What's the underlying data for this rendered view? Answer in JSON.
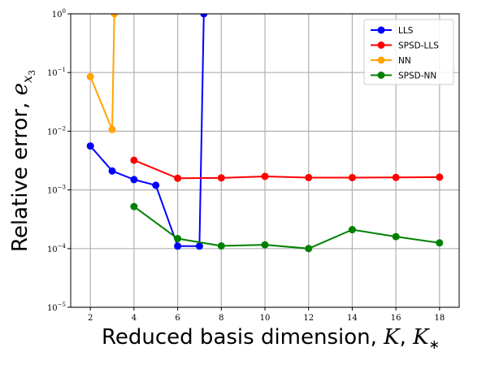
{
  "chart_data": {
    "type": "line",
    "yscale": "log",
    "xlim": [
      1.1,
      18.9
    ],
    "ylim": [
      1e-05,
      1
    ],
    "xticks": [
      2,
      4,
      6,
      8,
      10,
      12,
      14,
      16,
      18
    ],
    "xtick_labels": [
      "2",
      "4",
      "6",
      "8",
      "10",
      "12",
      "14",
      "16",
      "18"
    ],
    "yticks": [
      1e-05,
      0.0001,
      0.001,
      0.01,
      0.1,
      1
    ],
    "ytick_base": "10",
    "ytick_exponents": [
      "−5",
      "−4",
      "−3",
      "−2",
      "−1",
      "0"
    ],
    "grid": true,
    "legend_position": "top-right",
    "xlabel": {
      "prefix": "Reduced basis dimension, ",
      "sym1": "K",
      "sep": ", ",
      "sym2": "K",
      "sym2_sub": "∗"
    },
    "ylabel": {
      "prefix": "Relative error, ",
      "sym": "e",
      "sub": "x",
      "subsub": "3"
    },
    "series": [
      {
        "name": "LLS",
        "color": "#0000ff",
        "points": [
          [
            2,
            0.0056
          ],
          [
            3,
            0.0021
          ],
          [
            4,
            0.0015
          ],
          [
            5,
            0.0012
          ],
          [
            6,
            0.00011
          ],
          [
            7,
            0.00011
          ],
          [
            7.2,
            1.0
          ]
        ]
      },
      {
        "name": "SPSD-LLS",
        "color": "#ff0000",
        "points": [
          [
            4,
            0.0032
          ],
          [
            6,
            0.00158
          ],
          [
            8,
            0.0016
          ],
          [
            10,
            0.0017
          ],
          [
            12,
            0.00162
          ],
          [
            14,
            0.00162
          ],
          [
            16,
            0.00163
          ],
          [
            18,
            0.00165
          ]
        ]
      },
      {
        "name": "NN",
        "color": "#ffa500",
        "points": [
          [
            2,
            0.085
          ],
          [
            3,
            0.0107
          ],
          [
            3.1,
            1.0
          ]
        ]
      },
      {
        "name": "SPSD-NN",
        "color": "#008000",
        "points": [
          [
            4,
            0.00052
          ],
          [
            6,
            0.000148
          ],
          [
            8,
            0.000111
          ],
          [
            10,
            0.000116
          ],
          [
            12,
            0.0001
          ],
          [
            14,
            0.00021
          ],
          [
            16,
            0.00016
          ],
          [
            18,
            0.000125
          ]
        ]
      }
    ]
  }
}
